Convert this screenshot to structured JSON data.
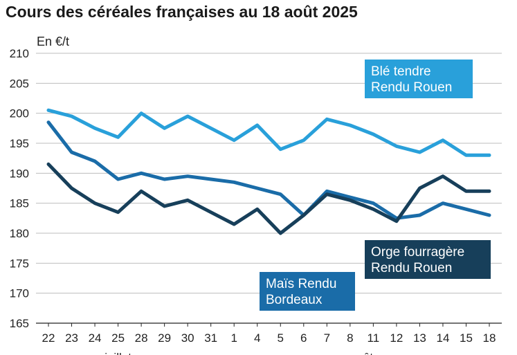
{
  "title": "Cours des céréales françaises au 18 août 2025",
  "chart_data": {
    "type": "line",
    "ylabel": "En €/t",
    "ylim": [
      165,
      210
    ],
    "yticks": [
      165,
      170,
      175,
      180,
      185,
      190,
      195,
      200,
      205,
      210
    ],
    "grid": true,
    "categories": [
      "22",
      "23",
      "24",
      "25",
      "28",
      "29",
      "30",
      "31",
      "1",
      "4",
      "5",
      "6",
      "7",
      "8",
      "11",
      "12",
      "13",
      "14",
      "15",
      "18"
    ],
    "month_labels": [
      {
        "label": "juillet",
        "index": 3
      },
      {
        "label": "août",
        "index": 13.5
      }
    ],
    "series": [
      {
        "name": "Blé tendre Rendu Rouen",
        "label_lines": [
          "Blé tendre",
          "Rendu Rouen"
        ],
        "color": "#29a0da",
        "values": [
          200.5,
          199.5,
          197.5,
          196,
          200,
          197.5,
          199.5,
          197.5,
          195.5,
          198,
          194,
          195.5,
          199,
          198,
          196.5,
          194.5,
          193.5,
          195.5,
          193,
          193
        ]
      },
      {
        "name": "Maïs Rendu Bordeaux",
        "label_lines": [
          "Maïs Rendu",
          "Bordeaux"
        ],
        "color": "#1a6ca8",
        "values": [
          198.5,
          193.5,
          192,
          189,
          190,
          189,
          189.5,
          189,
          188.5,
          187.5,
          186.5,
          183,
          187,
          186,
          185,
          182.5,
          183,
          185,
          184,
          183
        ]
      },
      {
        "name": "Orge fourragère Rendu Rouen",
        "label_lines": [
          "Orge fourragère",
          "Rendu Rouen"
        ],
        "color": "#173f5a",
        "values": [
          191.5,
          187.5,
          185,
          183.5,
          187,
          184.5,
          185.5,
          183.5,
          181.5,
          184,
          180,
          183,
          186.5,
          185.5,
          184,
          182,
          187.5,
          189.5,
          187,
          187
        ]
      }
    ]
  }
}
